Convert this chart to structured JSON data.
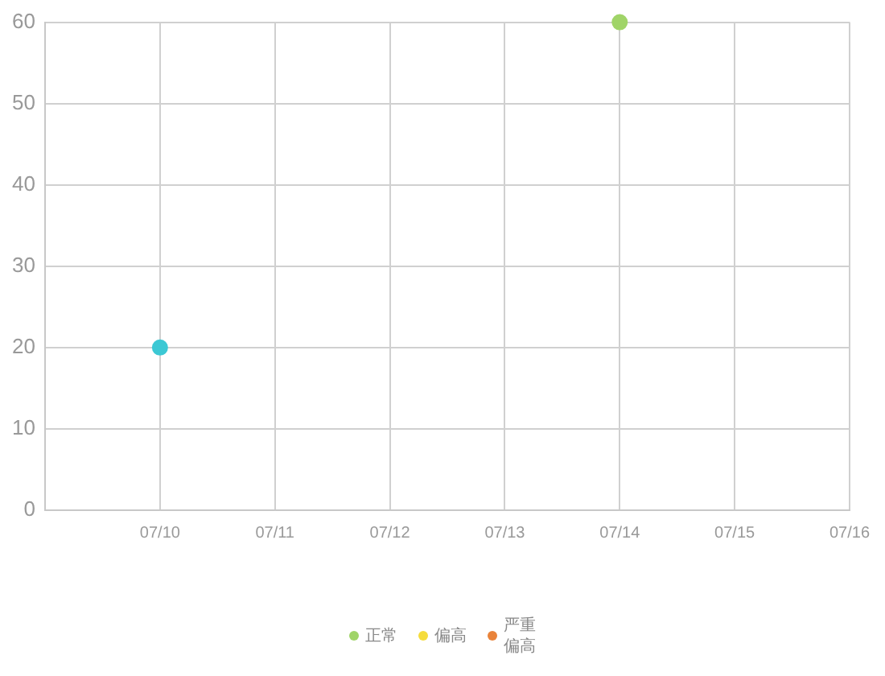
{
  "chart_data": {
    "type": "scatter",
    "xlim": [
      "--07-09",
      "--07-16"
    ],
    "xticks": [
      {
        "value": "--07-10",
        "label": "07/10"
      },
      {
        "value": "--07-11",
        "label": "07/11"
      },
      {
        "value": "--07-12",
        "label": "07/12"
      },
      {
        "value": "--07-13",
        "label": "07/13"
      },
      {
        "value": "--07-14",
        "label": "07/14"
      },
      {
        "value": "--07-15",
        "label": "07/15"
      },
      {
        "value": "--07-16",
        "label": "07/16"
      }
    ],
    "ylim": [
      0,
      60
    ],
    "yticks": [
      0,
      10,
      20,
      30,
      40,
      50,
      60
    ],
    "series": [
      {
        "name": "正常",
        "color": "#a0d468",
        "x": [
          "--07-14"
        ],
        "values": [
          60
        ]
      },
      {
        "name": "偏高",
        "color": "#f5dc3c"
      },
      {
        "name": "严重偏高",
        "color": "#e9833a"
      },
      {
        "color": "#3cc8d4",
        "x": [
          "--07-10"
        ],
        "values": [
          20
        ]
      }
    ],
    "marker": "circle",
    "grid": true,
    "legend": "bottom"
  }
}
